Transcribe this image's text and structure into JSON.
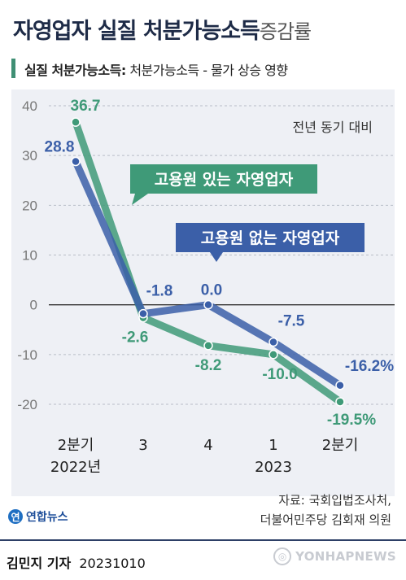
{
  "header": {
    "title_main": "자영업자 실질 처분가능소득",
    "title_suffix": "증감률",
    "subtitle_bold": "실질 처분가능소득:",
    "subtitle_rest": " 처분가능소득 - 물가 상승 영향"
  },
  "chart_data": {
    "type": "line",
    "categories": [
      "2분기 2022년",
      "3",
      "4",
      "1 2023",
      "2분기"
    ],
    "x_tick_lines": [
      [
        "2분기",
        "2022년"
      ],
      [
        "3"
      ],
      [
        "4"
      ],
      [
        "1",
        "2023"
      ],
      [
        "2분기"
      ]
    ],
    "y_ticks": [
      40,
      30,
      20,
      10,
      0,
      -10,
      -20
    ],
    "ylim": [
      -20,
      40
    ],
    "note": "전년 동기 대비",
    "unit": "%",
    "series": [
      {
        "name": "고용원 있는 자영업자",
        "color": "#3f9a78",
        "values": [
          36.7,
          -2.6,
          -8.2,
          -10.0,
          -19.5
        ],
        "labels": [
          "36.7",
          "-2.6",
          "-8.2",
          "-10.0",
          "-19.5%"
        ]
      },
      {
        "name": "고용원 없는 자영업자",
        "color": "#3b5fa8",
        "values": [
          28.8,
          -1.8,
          0.0,
          -7.5,
          -16.2
        ],
        "labels": [
          "28.8",
          "-1.8",
          "0.0",
          "-7.5",
          "-16.2%"
        ]
      }
    ]
  },
  "source": {
    "line1": "자료: 국회입법조사처,",
    "line2": "더불어민주당 김회재 의원"
  },
  "logo": {
    "text": "연합뉴스",
    "icon": "yonhap-logo-icon"
  },
  "byline": {
    "author": "김민지 기자",
    "date": "20231010"
  },
  "watermark": {
    "text": "YONHAPNEWS",
    "icon": "yonhap-watermark-icon"
  }
}
